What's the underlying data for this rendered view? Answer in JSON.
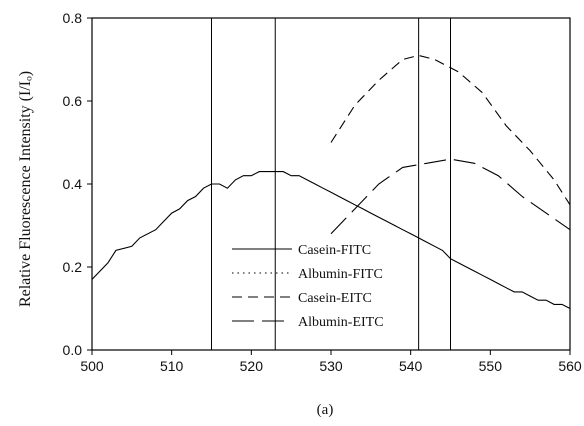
{
  "chart_data": {
    "type": "line",
    "title": "",
    "xlabel": "",
    "ylabel": "Relative Fluorescence Intensity (I/Iₒ)",
    "caption": "(a)",
    "xlim": [
      500,
      560
    ],
    "ylim": [
      0.0,
      0.8
    ],
    "x_ticks": [
      500,
      510,
      520,
      530,
      540,
      550,
      560
    ],
    "y_ticks": [
      0.0,
      0.2,
      0.4,
      0.6,
      0.8
    ],
    "x_tick_labels": [
      "500",
      "510",
      "520",
      "530",
      "540",
      "550",
      "560"
    ],
    "y_tick_labels": [
      "0.0",
      "0.2",
      "0.4",
      "0.6",
      "0.8"
    ],
    "grid": false,
    "legend_position": "bottom-center",
    "reference_lines_x": [
      515,
      523,
      541,
      545
    ],
    "series": [
      {
        "name": "Casein-FITC",
        "style": "solid",
        "x": [
          500,
          502,
          503,
          505,
          506,
          508,
          509,
          510,
          511,
          512,
          513,
          514,
          515,
          516,
          517,
          518,
          519,
          520,
          521,
          522,
          523,
          524,
          525,
          526,
          527,
          528,
          529,
          530,
          531,
          532,
          533,
          534,
          535,
          536,
          537,
          538,
          539,
          540,
          541,
          542,
          543,
          544,
          545,
          546,
          547,
          548,
          549,
          550,
          551,
          552,
          553,
          554,
          555,
          556,
          557,
          558,
          559,
          560
        ],
        "y": [
          0.17,
          0.21,
          0.24,
          0.25,
          0.27,
          0.29,
          0.31,
          0.33,
          0.34,
          0.36,
          0.37,
          0.39,
          0.4,
          0.4,
          0.39,
          0.41,
          0.42,
          0.42,
          0.43,
          0.43,
          0.43,
          0.43,
          0.42,
          0.42,
          0.41,
          0.4,
          0.39,
          0.38,
          0.37,
          0.36,
          0.35,
          0.34,
          0.33,
          0.32,
          0.31,
          0.3,
          0.29,
          0.28,
          0.27,
          0.26,
          0.25,
          0.24,
          0.22,
          0.21,
          0.2,
          0.19,
          0.18,
          0.17,
          0.16,
          0.15,
          0.14,
          0.14,
          0.13,
          0.12,
          0.12,
          0.11,
          0.11,
          0.1
        ]
      },
      {
        "name": "Albumin-FITC",
        "style": "dotted",
        "x": [],
        "y": []
      },
      {
        "name": "Casein-EITC",
        "style": "dashed",
        "x": [
          530,
          533,
          536,
          539,
          541,
          543,
          546,
          549,
          552,
          555,
          558,
          560
        ],
        "y": [
          0.5,
          0.59,
          0.65,
          0.7,
          0.71,
          0.7,
          0.67,
          0.62,
          0.54,
          0.48,
          0.41,
          0.35
        ]
      },
      {
        "name": "Albumin-EITC",
        "style": "longdash",
        "x": [
          530,
          533,
          536,
          539,
          542,
          545,
          548,
          551,
          554,
          557,
          560
        ],
        "y": [
          0.28,
          0.34,
          0.4,
          0.44,
          0.45,
          0.46,
          0.45,
          0.42,
          0.37,
          0.33,
          0.29
        ]
      }
    ]
  }
}
